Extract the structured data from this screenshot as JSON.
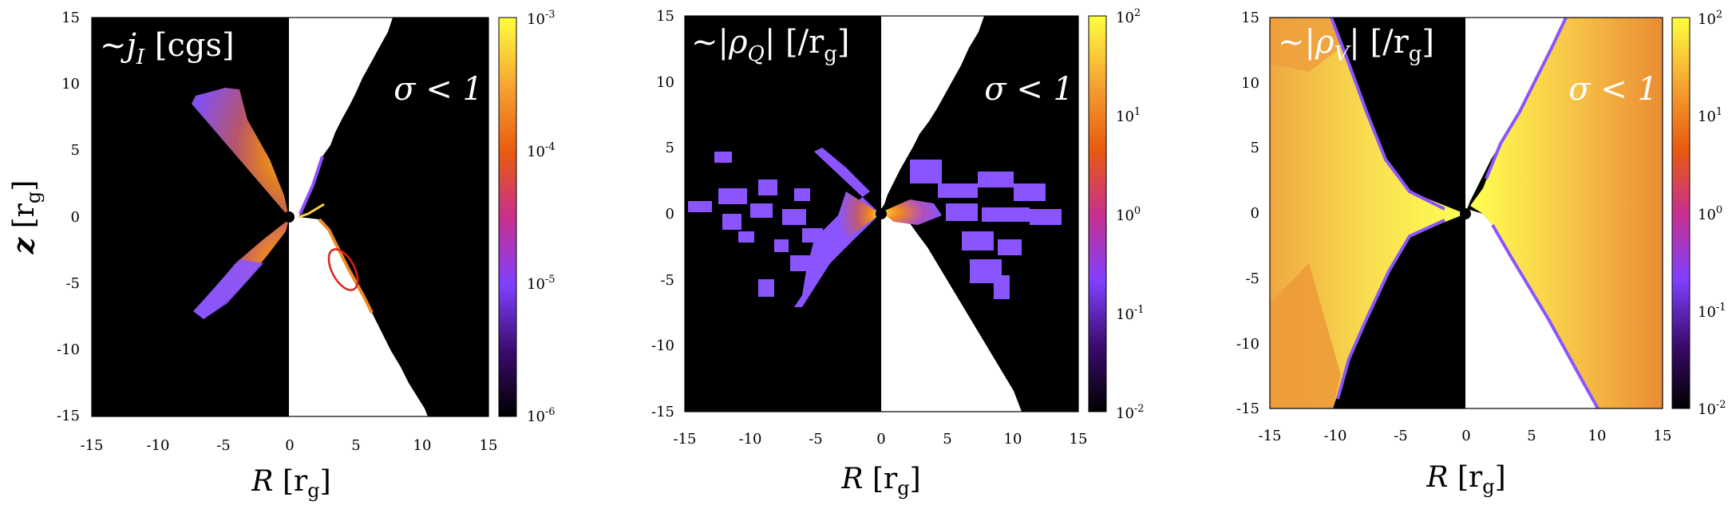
{
  "figure": {
    "panels": [
      {
        "id": "jI",
        "label_prefix": "~",
        "label_main": "j",
        "label_sub": "I",
        "label_unit": " [cgs]",
        "region_label": "σ < 1",
        "xlabel_main": "R",
        "xlabel_unit": "[r",
        "xlabel_sub": "g",
        "xlabel_close": "]",
        "ylabel_main": "z",
        "ylabel_unit": "[r",
        "ylabel_sub": "g",
        "ylabel_close": "]",
        "x_ticks": [
          "-15",
          "-10",
          "-5",
          "0",
          "5",
          "10",
          "15"
        ],
        "y_ticks": [
          "15",
          "10",
          "5",
          "0",
          "-5",
          "-10",
          "-15"
        ],
        "colorbar_ticks": [
          {
            "base": "10",
            "exp": "-3"
          },
          {
            "base": "10",
            "exp": "-4"
          },
          {
            "base": "10",
            "exp": "-5"
          },
          {
            "base": "10",
            "exp": "-6"
          }
        ]
      },
      {
        "id": "rhoQ",
        "label_prefix": "~|",
        "label_main": "ρ",
        "label_sub": "Q",
        "label_unit": "|  [/r",
        "label_unit_sub": "g",
        "label_unit_close": "]",
        "region_label": "σ < 1",
        "xlabel_main": "R",
        "xlabel_unit": "[r",
        "xlabel_sub": "g",
        "xlabel_close": "]",
        "x_ticks": [
          "-15",
          "-10",
          "-5",
          "0",
          "5",
          "10",
          "15"
        ],
        "y_ticks": [
          "15",
          "10",
          "5",
          "0",
          "-5",
          "-10",
          "-15"
        ],
        "colorbar_ticks": [
          {
            "base": "10",
            "exp": "2"
          },
          {
            "base": "10",
            "exp": "1"
          },
          {
            "base": "10",
            "exp": "0"
          },
          {
            "base": "10",
            "exp": "-1"
          },
          {
            "base": "10",
            "exp": "-2"
          }
        ]
      },
      {
        "id": "rhoV",
        "label_prefix": "~|",
        "label_main": "ρ",
        "label_sub": "V",
        "label_unit": "|  [/r",
        "label_unit_sub": "g",
        "label_unit_close": "]",
        "region_label": "σ < 1",
        "xlabel_main": "R",
        "xlabel_unit": "[r",
        "xlabel_sub": "g",
        "xlabel_close": "]",
        "x_ticks": [
          "-15",
          "-10",
          "-5",
          "0",
          "5",
          "10",
          "15"
        ],
        "y_ticks": [
          "15",
          "10",
          "5",
          "0",
          "-5",
          "-10",
          "-15"
        ],
        "colorbar_ticks": [
          {
            "base": "10",
            "exp": "2"
          },
          {
            "base": "10",
            "exp": "1"
          },
          {
            "base": "10",
            "exp": "0"
          },
          {
            "base": "10",
            "exp": "-1"
          },
          {
            "base": "10",
            "exp": "-2"
          }
        ]
      }
    ]
  },
  "chart_data": [
    {
      "type": "heatmap",
      "xlim": [
        -15,
        15
      ],
      "ylim": [
        -15,
        15
      ],
      "colorbar_scale": "log",
      "colorbar_range": [
        1e-06,
        0.001
      ],
      "colormap": [
        "#000000",
        "#3a0a6a",
        "#8040ff",
        "#c8308c",
        "#e85a10",
        "#f5a030",
        "#ffff40"
      ],
      "masked_region_color": "#ffffff",
      "annotation": "red ellipse near R=4, z=-4"
    },
    {
      "type": "heatmap",
      "xlim": [
        -15,
        15
      ],
      "ylim": [
        -15,
        15
      ],
      "colorbar_scale": "log",
      "colorbar_range": [
        0.01,
        100
      ],
      "colormap": [
        "#000000",
        "#3a0a6a",
        "#8040ff",
        "#c8308c",
        "#e85a10",
        "#f5a030",
        "#ffff40"
      ],
      "masked_region_color": "#ffffff"
    },
    {
      "type": "heatmap",
      "xlim": [
        -15,
        15
      ],
      "ylim": [
        -15,
        15
      ],
      "colorbar_scale": "log",
      "colorbar_range": [
        0.01,
        100
      ],
      "colormap": [
        "#000000",
        "#3a0a6a",
        "#8040ff",
        "#c8308c",
        "#e85a10",
        "#f5a030",
        "#ffff40"
      ],
      "masked_region_color": "#ffffff"
    }
  ]
}
